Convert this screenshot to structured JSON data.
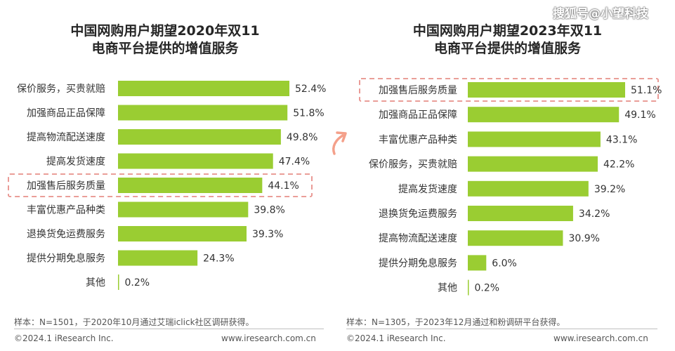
{
  "watermark": "搜狐号@小望科技",
  "colors": {
    "bar": "#9acd32",
    "highlight": "#e8908a",
    "arrow": "#f4a08a"
  },
  "chart_data": [
    {
      "type": "bar",
      "orientation": "horizontal",
      "title": "中国网购用户期望2020年双11电商平台提供的增值服务",
      "title_lines": [
        "中国网购用户期望2020年双11",
        "电商平台提供的增值服务"
      ],
      "categories": [
        "保价服务，买贵就赔",
        "加强商品正品保障",
        "提高物流配送速度",
        "提高发货速度",
        "加强售后服务质量",
        "丰富优惠产品种类",
        "退换货免运费服务",
        "提供分期免息服务",
        "其他"
      ],
      "values": [
        52.4,
        51.8,
        49.8,
        47.4,
        44.1,
        39.8,
        39.3,
        24.3,
        0.2
      ],
      "value_labels": [
        "52.4%",
        "51.8%",
        "49.8%",
        "47.4%",
        "44.1%",
        "39.8%",
        "39.3%",
        "24.3%",
        "0.2%"
      ],
      "highlighted_category": "加强售后服务质量",
      "xlim": [
        0,
        55
      ],
      "grid": false,
      "note": "样本：N=1501，于2020年10月通过艾瑞iclick社区调研获得。"
    },
    {
      "type": "bar",
      "orientation": "horizontal",
      "title": "中国网购用户期望2023年双11电商平台提供的增值服务",
      "title_lines": [
        "中国网购用户期望2023年双11",
        "电商平台提供的增值服务"
      ],
      "categories": [
        "加强售后服务质量",
        "加强商品正品保障",
        "丰富优惠产品种类",
        "保价服务，买贵就赔",
        "提高发货速度",
        "退换货免运费服务",
        "提高物流配送速度",
        "提供分期免息服务",
        "其他"
      ],
      "values": [
        51.1,
        49.1,
        43.1,
        42.2,
        39.2,
        34.2,
        30.9,
        6.0,
        0.2
      ],
      "value_labels": [
        "51.1%",
        "49.1%",
        "43.1%",
        "42.2%",
        "39.2%",
        "34.2%",
        "30.9%",
        "6.0%",
        "0.2%"
      ],
      "highlighted_category": "加强售后服务质量",
      "xlim": [
        0,
        55
      ],
      "grid": false,
      "note": "样本：N=1305，于2023年12月通过和粉调研平台获得。"
    }
  ],
  "footer": {
    "copyright": "©2024.1 iResearch Inc.",
    "site": "www.iresearch.com.cn"
  }
}
